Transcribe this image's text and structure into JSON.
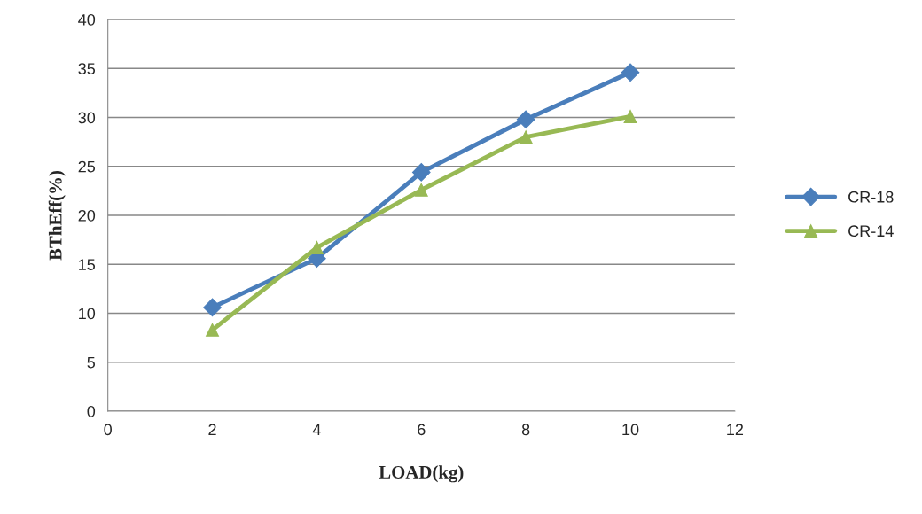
{
  "chart_data": {
    "type": "line",
    "xlabel": "LOAD(kg)",
    "ylabel": "BThEff(%)",
    "xlim": [
      0,
      12
    ],
    "xticks": [
      0,
      2,
      4,
      6,
      8,
      10,
      12
    ],
    "ylim": [
      0,
      40
    ],
    "yticks": [
      0,
      5,
      10,
      15,
      20,
      25,
      30,
      35,
      40
    ],
    "grid": "y",
    "legend": "right",
    "line_style": "solid",
    "series": [
      {
        "name": "CR-18",
        "color": "#4a7ebb",
        "marker": "diamond",
        "x": [
          2,
          4,
          6,
          8,
          10
        ],
        "values": [
          10.6,
          15.6,
          24.4,
          29.8,
          34.6
        ]
      },
      {
        "name": "CR-14",
        "color": "#98b954",
        "marker": "triangle",
        "x": [
          2,
          4,
          6,
          8,
          10
        ],
        "values": [
          8.3,
          16.7,
          22.6,
          28.0,
          30.1
        ]
      }
    ]
  }
}
